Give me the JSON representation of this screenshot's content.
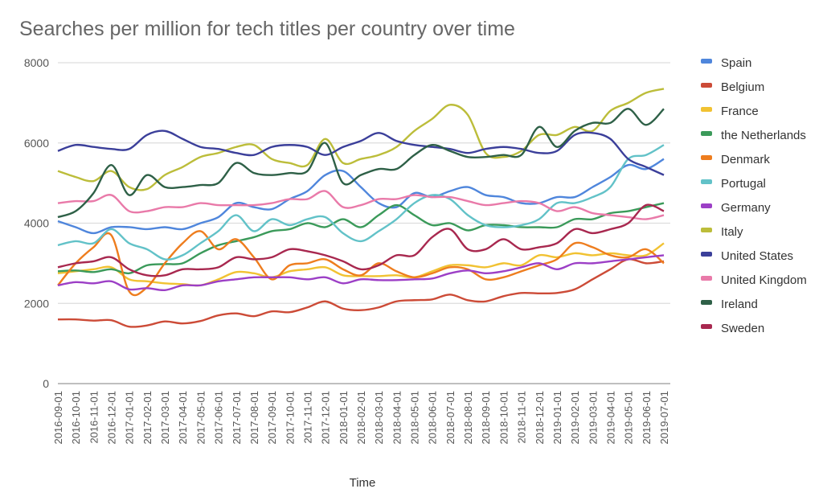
{
  "chart_data": {
    "type": "line",
    "title": "Searches per million for tech titles per country over time",
    "xlabel": "Time",
    "ylabel": "",
    "ylim": [
      0,
      8000
    ],
    "yticks": [
      0,
      2000,
      4000,
      6000,
      8000
    ],
    "grid": true,
    "legend_position": "right",
    "x": [
      "2016-09-01",
      "2016-10-01",
      "2016-11-01",
      "2016-12-01",
      "2017-01-01",
      "2017-02-01",
      "2017-03-01",
      "2017-04-01",
      "2017-05-01",
      "2017-06-01",
      "2017-07-01",
      "2017-08-01",
      "2017-09-01",
      "2017-10-01",
      "2017-11-01",
      "2017-12-01",
      "2018-01-01",
      "2018-02-01",
      "2018-03-01",
      "2018-04-01",
      "2018-05-01",
      "2018-06-01",
      "2018-07-01",
      "2018-08-01",
      "2018-09-01",
      "2018-10-01",
      "2018-11-01",
      "2018-12-01",
      "2019-01-01",
      "2019-02-01",
      "2019-03-01",
      "2019-04-01",
      "2019-05-01",
      "2019-06-01",
      "2019-07-01"
    ],
    "series": [
      {
        "name": "Spain",
        "color": "#4f86dc",
        "values": [
          4050,
          3900,
          3750,
          3900,
          3900,
          3850,
          3900,
          3850,
          4000,
          4150,
          4500,
          4400,
          4350,
          4600,
          4800,
          5200,
          5300,
          4900,
          4500,
          4400,
          4750,
          4650,
          4800,
          4900,
          4700,
          4650,
          4500,
          4500,
          4650,
          4650,
          4900,
          5150,
          5450,
          5350,
          5600
        ]
      },
      {
        "name": "Belgium",
        "color": "#cc4b37",
        "values": [
          1600,
          1600,
          1570,
          1580,
          1420,
          1450,
          1550,
          1500,
          1560,
          1700,
          1750,
          1680,
          1800,
          1780,
          1900,
          2050,
          1870,
          1830,
          1900,
          2050,
          2080,
          2100,
          2220,
          2080,
          2050,
          2180,
          2260,
          2250,
          2260,
          2350,
          2600,
          2850,
          3100,
          3000,
          3050
        ]
      },
      {
        "name": "France",
        "color": "#f1c232",
        "values": [
          2750,
          2800,
          2850,
          2900,
          2600,
          2550,
          2500,
          2480,
          2450,
          2600,
          2780,
          2750,
          2650,
          2800,
          2850,
          2900,
          2700,
          2680,
          2680,
          2700,
          2650,
          2800,
          2950,
          2950,
          2900,
          3000,
          2950,
          3200,
          3150,
          3250,
          3200,
          3250,
          3200,
          3200,
          3500
        ]
      },
      {
        "name": "the Netherlands",
        "color": "#3b9a5a",
        "values": [
          2800,
          2820,
          2780,
          2850,
          2750,
          2950,
          2980,
          3000,
          3250,
          3450,
          3550,
          3650,
          3800,
          3850,
          4000,
          3900,
          4100,
          3900,
          4200,
          4450,
          4200,
          3950,
          4000,
          3820,
          3950,
          3950,
          3900,
          3900,
          3900,
          4100,
          4100,
          4250,
          4300,
          4400,
          4500
        ]
      },
      {
        "name": "Denmark",
        "color": "#ee7d1e",
        "values": [
          2450,
          3000,
          3400,
          3700,
          2300,
          2400,
          3000,
          3500,
          3800,
          3350,
          3600,
          3150,
          2600,
          2950,
          3000,
          3100,
          2850,
          2700,
          3000,
          2800,
          2650,
          2750,
          2900,
          2850,
          2600,
          2650,
          2800,
          2950,
          3100,
          3500,
          3400,
          3200,
          3150,
          3350,
          3000
        ]
      },
      {
        "name": "Portugal",
        "color": "#62c2c8",
        "values": [
          3450,
          3550,
          3500,
          3850,
          3500,
          3350,
          3100,
          3200,
          3500,
          3800,
          4200,
          3800,
          4100,
          3950,
          4100,
          4150,
          3750,
          3550,
          3800,
          4100,
          4500,
          4700,
          4600,
          4200,
          3950,
          3900,
          3950,
          4100,
          4500,
          4500,
          4650,
          4900,
          5600,
          5700,
          5950
        ]
      },
      {
        "name": "Germany",
        "color": "#9c3fc6",
        "values": [
          2450,
          2530,
          2500,
          2550,
          2350,
          2380,
          2330,
          2450,
          2450,
          2550,
          2600,
          2650,
          2650,
          2650,
          2600,
          2650,
          2500,
          2600,
          2580,
          2580,
          2600,
          2620,
          2750,
          2820,
          2750,
          2800,
          2900,
          3000,
          2850,
          3000,
          3000,
          3050,
          3100,
          3150,
          3200
        ]
      },
      {
        "name": "Italy",
        "color": "#bcbd3a",
        "values": [
          5300,
          5150,
          5050,
          5300,
          4900,
          4850,
          5200,
          5400,
          5650,
          5750,
          5900,
          5950,
          5600,
          5500,
          5450,
          6100,
          5500,
          5600,
          5700,
          5900,
          6300,
          6600,
          6950,
          6700,
          5750,
          5650,
          5800,
          6200,
          6200,
          6400,
          6300,
          6800,
          7000,
          7250,
          7350
        ]
      },
      {
        "name": "United States",
        "color": "#3b3f9a",
        "values": [
          5800,
          5950,
          5900,
          5850,
          5850,
          6200,
          6300,
          6100,
          5900,
          5850,
          5750,
          5700,
          5900,
          5950,
          5900,
          5700,
          5900,
          6050,
          6250,
          6050,
          5950,
          5900,
          5850,
          5750,
          5850,
          5900,
          5850,
          5750,
          5800,
          6200,
          6250,
          6100,
          5600,
          5400,
          5200
        ]
      },
      {
        "name": "United Kingdom",
        "color": "#e97aa9",
        "values": [
          4500,
          4550,
          4550,
          4700,
          4300,
          4300,
          4400,
          4400,
          4500,
          4450,
          4450,
          4450,
          4500,
          4600,
          4600,
          4800,
          4400,
          4450,
          4600,
          4600,
          4700,
          4650,
          4650,
          4550,
          4450,
          4500,
          4550,
          4500,
          4300,
          4400,
          4250,
          4200,
          4150,
          4100,
          4200
        ]
      },
      {
        "name": "Ireland",
        "color": "#2e6047",
        "values": [
          4150,
          4300,
          4750,
          5450,
          4700,
          5200,
          4900,
          4900,
          4950,
          5000,
          5500,
          5250,
          5200,
          5250,
          5300,
          6000,
          5000,
          5200,
          5350,
          5350,
          5700,
          5950,
          5800,
          5650,
          5650,
          5700,
          5700,
          6400,
          5900,
          6300,
          6500,
          6500,
          6850,
          6450,
          6850
        ]
      },
      {
        "name": "Sweden",
        "color": "#a8284f",
        "values": [
          2900,
          3000,
          3050,
          3150,
          2850,
          2700,
          2700,
          2850,
          2850,
          2900,
          3150,
          3100,
          3150,
          3350,
          3300,
          3200,
          3050,
          2850,
          2950,
          3200,
          3200,
          3650,
          3850,
          3350,
          3350,
          3600,
          3350,
          3400,
          3500,
          3850,
          3750,
          3850,
          4000,
          4450,
          4300
        ]
      }
    ]
  }
}
